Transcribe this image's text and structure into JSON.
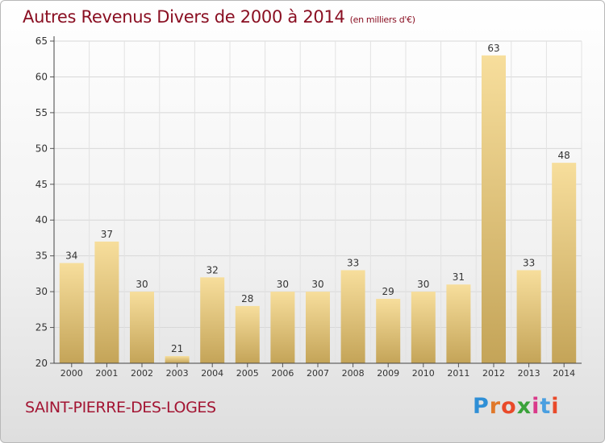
{
  "header": {
    "title": "Autres Revenus Divers de 2000 à 2014",
    "subtitle": "(en milliers d'€)"
  },
  "footer": {
    "commune": "SAINT-PIERRE-DES-LOGES",
    "logo_text": "Proxiti"
  },
  "colors": {
    "title": "#8a0f22",
    "commune": "#a31533",
    "bar_light": "#f6dc98",
    "bar_dark": "#c9a85a"
  },
  "chart_data": {
    "type": "bar",
    "title": "Autres Revenus Divers de 2000 à 2014",
    "categories": [
      "2000",
      "2001",
      "2002",
      "2003",
      "2004",
      "2005",
      "2006",
      "2007",
      "2008",
      "2009",
      "2010",
      "2011",
      "2012",
      "2013",
      "2014"
    ],
    "values": [
      34,
      37,
      30,
      21,
      32,
      28,
      30,
      30,
      33,
      29,
      30,
      31,
      63,
      33,
      48
    ],
    "ylim": [
      20,
      65
    ],
    "yticks": [
      20,
      25,
      30,
      35,
      40,
      45,
      50,
      55,
      60,
      65
    ],
    "grid": true
  }
}
